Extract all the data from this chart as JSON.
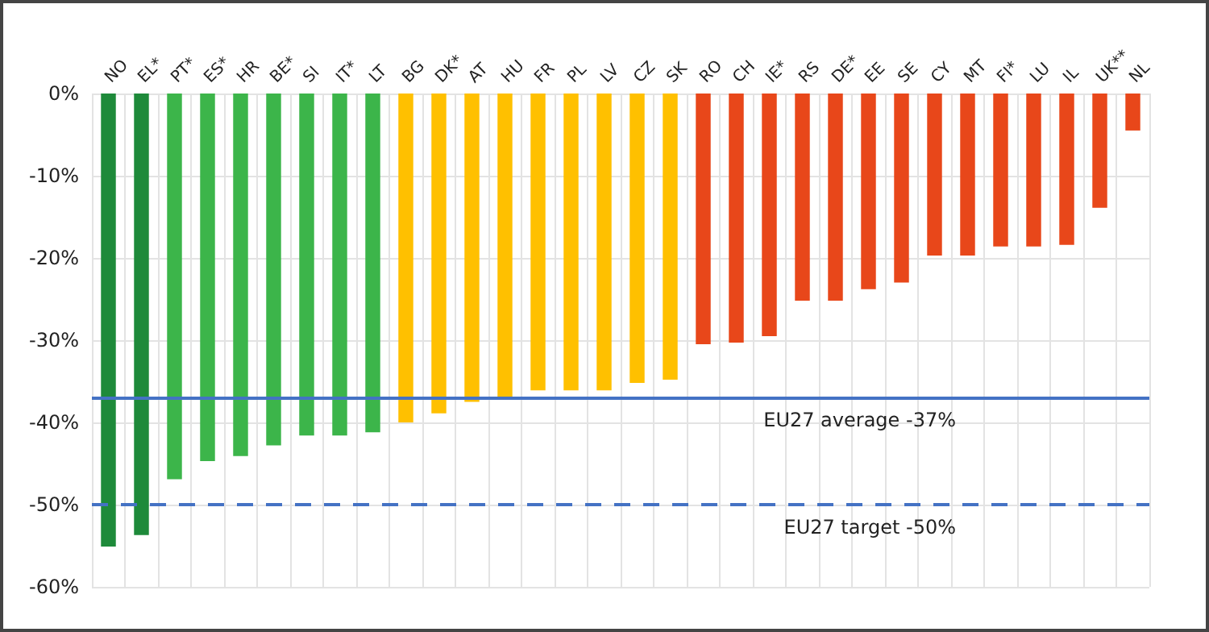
{
  "chart_data": {
    "type": "bar",
    "categories": [
      "NO",
      "EL*",
      "PT*",
      "ES*",
      "HR",
      "BE*",
      "SI",
      "IT*",
      "LT",
      "BG",
      "DK*",
      "AT",
      "HU",
      "FR",
      "PL",
      "LV",
      "CZ",
      "SK",
      "RO",
      "CH",
      "IE*",
      "RS",
      "DE*",
      "EE",
      "SE",
      "CY",
      "MT",
      "FI*",
      "LU",
      "IL",
      "UK**",
      "NL"
    ],
    "values": [
      -55.1,
      -53.7,
      -46.9,
      -44.7,
      -44.1,
      -42.8,
      -41.6,
      -41.6,
      -41.2,
      -40.0,
      -38.9,
      -37.5,
      -37.1,
      -36.1,
      -36.1,
      -36.1,
      -35.2,
      -34.8,
      -30.5,
      -30.3,
      -29.5,
      -25.2,
      -25.2,
      -23.8,
      -23.0,
      -19.7,
      -19.7,
      -18.6,
      -18.6,
      -18.4,
      -13.9,
      -4.5
    ],
    "colors": [
      "#1e8a3a",
      "#1e8a3a",
      "#3cb54a",
      "#3cb54a",
      "#3cb54a",
      "#3cb54a",
      "#3cb54a",
      "#3cb54a",
      "#3cb54a",
      "#ffc000",
      "#ffc000",
      "#ffc000",
      "#ffc000",
      "#ffc000",
      "#ffc000",
      "#ffc000",
      "#ffc000",
      "#ffc000",
      "#e8471a",
      "#e8471a",
      "#e8471a",
      "#e8471a",
      "#e8471a",
      "#e8471a",
      "#e8471a",
      "#e8471a",
      "#e8471a",
      "#e8471a",
      "#e8471a",
      "#e8471a",
      "#e8471a",
      "#e8471a"
    ],
    "ylim": [
      -60,
      0
    ],
    "yticks": [
      {
        "value": -60,
        "label": "-60%"
      },
      {
        "value": -50,
        "label": "-50%"
      },
      {
        "value": -40,
        "label": "-40%"
      },
      {
        "value": -30,
        "label": "-30%"
      },
      {
        "value": -20,
        "label": "-20%"
      },
      {
        "value": -10,
        "label": "-10%"
      },
      {
        "value": 0,
        "label": "0%"
      }
    ],
    "grid": true,
    "ref_lines": [
      {
        "axis": "y",
        "value": -37,
        "label": "EU27 average -37%",
        "color": "#4472c4",
        "line_style": "solid"
      },
      {
        "axis": "y",
        "value": -50,
        "label": "EU27 target -50%",
        "color": "#4472c4",
        "line_style": "dashed"
      }
    ]
  }
}
